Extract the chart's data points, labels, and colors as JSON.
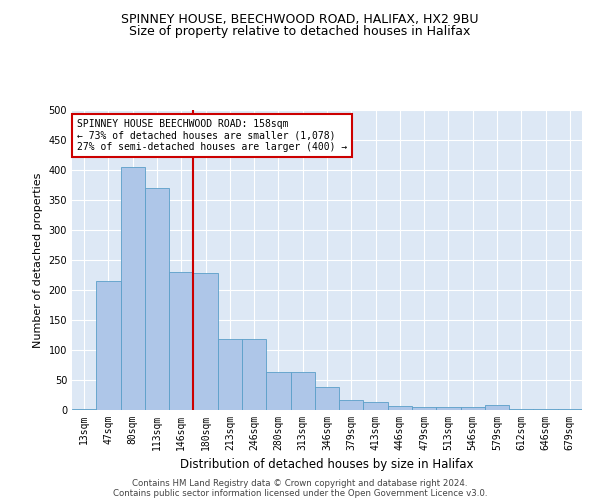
{
  "title1": "SPINNEY HOUSE, BEECHWOOD ROAD, HALIFAX, HX2 9BU",
  "title2": "Size of property relative to detached houses in Halifax",
  "xlabel": "Distribution of detached houses by size in Halifax",
  "ylabel": "Number of detached properties",
  "categories": [
    "13sqm",
    "47sqm",
    "80sqm",
    "113sqm",
    "146sqm",
    "180sqm",
    "213sqm",
    "246sqm",
    "280sqm",
    "313sqm",
    "346sqm",
    "379sqm",
    "413sqm",
    "446sqm",
    "479sqm",
    "513sqm",
    "546sqm",
    "579sqm",
    "612sqm",
    "646sqm",
    "679sqm"
  ],
  "values": [
    2,
    215,
    405,
    370,
    230,
    228,
    118,
    118,
    64,
    64,
    38,
    17,
    13,
    7,
    5,
    5,
    5,
    8,
    2,
    1,
    1
  ],
  "bar_color": "#aec6e8",
  "bar_edge_color": "#5a9fc8",
  "vline_x": 4.5,
  "vline_color": "#cc0000",
  "annotation_text": "SPINNEY HOUSE BEECHWOOD ROAD: 158sqm\n← 73% of detached houses are smaller (1,078)\n27% of semi-detached houses are larger (400) →",
  "annotation_box_color": "#cc0000",
  "plot_bg_color": "#dde8f5",
  "ylim": [
    0,
    500
  ],
  "yticks": [
    0,
    50,
    100,
    150,
    200,
    250,
    300,
    350,
    400,
    450,
    500
  ],
  "footer1": "Contains HM Land Registry data © Crown copyright and database right 2024.",
  "footer2": "Contains public sector information licensed under the Open Government Licence v3.0.",
  "title1_fontsize": 9,
  "title2_fontsize": 9,
  "tick_fontsize": 7,
  "ylabel_fontsize": 8,
  "xlabel_fontsize": 8.5
}
